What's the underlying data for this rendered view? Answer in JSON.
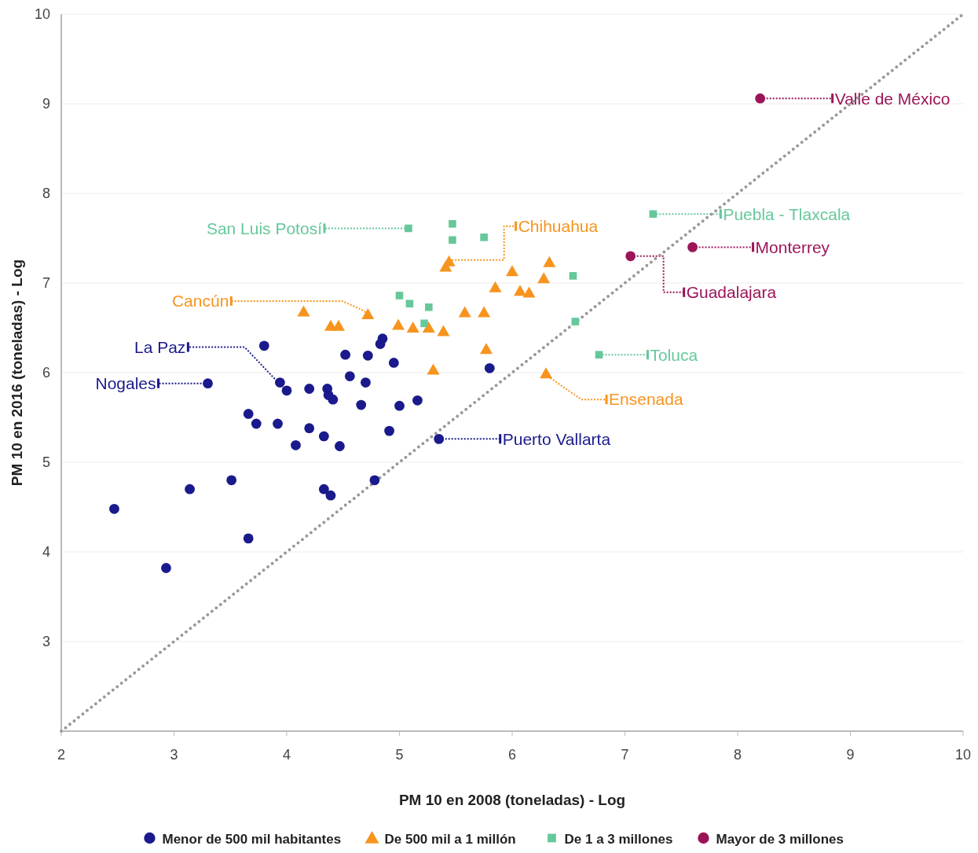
{
  "chart_data": {
    "type": "scatter",
    "xlabel": "PM 10 en 2008 (toneladas) - Log",
    "ylabel": "PM 10 en 2016 (toneladas) - Log",
    "xlim": [
      2,
      10
    ],
    "ylim": [
      2,
      10
    ],
    "xticks": [
      2,
      3,
      4,
      5,
      6,
      7,
      8,
      9,
      10
    ],
    "yticks": [
      3,
      4,
      5,
      6,
      7,
      8,
      9,
      10
    ],
    "grid": "y",
    "legend": "bottom",
    "series": [
      {
        "type": "line",
        "color": "#999999",
        "line_style": "dotted",
        "x": [
          2,
          10
        ],
        "values": [
          2,
          10
        ]
      },
      {
        "name": "Menor de 500 mil habitantes",
        "color": "#1a1a8c",
        "marker": "circle",
        "x": [
          2.47,
          2.93,
          3.14,
          3.51,
          3.66,
          3.3,
          3.8,
          3.66,
          3.73,
          3.92,
          3.94,
          4.0,
          4.2,
          4.2,
          4.08,
          4.33,
          4.36,
          4.37,
          4.41,
          4.33,
          4.39,
          4.47,
          4.52,
          4.56,
          4.66,
          4.7,
          4.72,
          4.78,
          4.83,
          4.85,
          4.95,
          4.91,
          5.0,
          5.16,
          5.35,
          5.8
        ],
        "values": [
          4.48,
          3.82,
          4.7,
          4.8,
          4.15,
          5.88,
          6.3,
          5.54,
          5.43,
          5.43,
          5.89,
          5.8,
          5.82,
          5.38,
          5.19,
          5.29,
          5.82,
          5.75,
          5.7,
          4.7,
          4.63,
          5.18,
          6.2,
          5.96,
          5.64,
          5.89,
          6.19,
          4.8,
          6.32,
          6.38,
          6.11,
          5.35,
          5.63,
          5.69,
          5.26,
          6.05
        ]
      },
      {
        "name": "De 500 mil a 1 millón",
        "color": "#f7941d",
        "marker": "triangle",
        "x": [
          4.15,
          4.39,
          4.46,
          4.72,
          4.99,
          5.12,
          5.26,
          5.39,
          5.3,
          5.41,
          5.44,
          5.58,
          5.75,
          5.77,
          5.85,
          6.0,
          6.07,
          6.15,
          6.28,
          6.33,
          6.3
        ],
        "values": [
          6.68,
          6.52,
          6.52,
          6.65,
          6.53,
          6.5,
          6.5,
          6.46,
          6.03,
          7.18,
          7.24,
          6.67,
          6.67,
          6.26,
          6.95,
          7.13,
          6.91,
          6.89,
          7.05,
          7.23,
          5.99
        ]
      },
      {
        "name": "De 1 a 3 millones",
        "color": "#66c89a",
        "marker": "square",
        "x": [
          5.08,
          5.47,
          5.47,
          5.75,
          5.0,
          5.09,
          5.26,
          5.22,
          6.54,
          6.56,
          6.77,
          7.25
        ],
        "values": [
          7.61,
          7.66,
          7.48,
          7.51,
          6.86,
          6.77,
          6.73,
          6.55,
          7.08,
          6.57,
          6.2,
          7.77
        ]
      },
      {
        "name": "Mayor de 3 millones",
        "color": "#9b1458",
        "marker": "circle",
        "x": [
          8.2,
          7.05,
          7.6
        ],
        "values": [
          9.06,
          7.3,
          7.4
        ]
      }
    ],
    "annotations": [
      "Valle de México",
      "Puebla - Tlaxcala",
      "Monterrey",
      {
        "text": "Guadalajara",
        "x": 7.05,
        "y": 7.3
      },
      "Toluca",
      {
        "text": "Chihuahua",
        "x": 5.44,
        "y": 7.24
      },
      {
        "text": "San Luis Potosí",
        "x": 5.08,
        "y": 7.61
      },
      {
        "text": "Cancún",
        "x": 4.72,
        "y": 6.65
      },
      {
        "text": "Ensenada",
        "x": 6.3,
        "y": 5.99
      },
      {
        "text": "La Paz",
        "x": 3.94,
        "y": 5.89
      },
      "Nogales",
      "Puerto Vallarta"
    ]
  }
}
